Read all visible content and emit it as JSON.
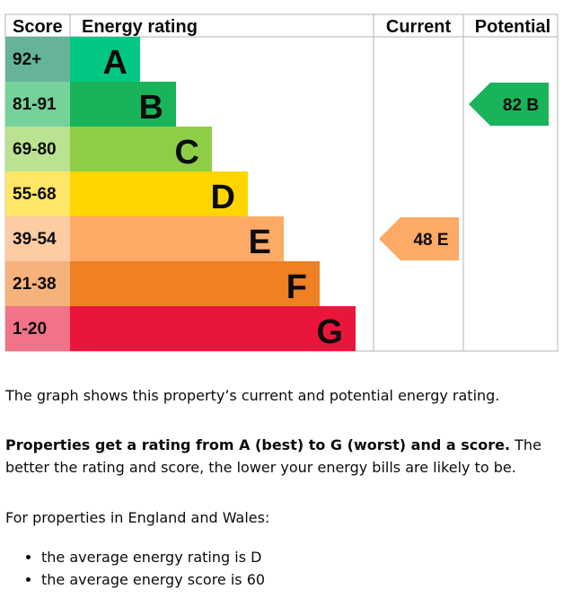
{
  "headers": {
    "score": "Score",
    "energy_rating": "Energy rating",
    "current": "Current",
    "potential": "Potential"
  },
  "chart_data": {
    "type": "bar",
    "bands": [
      {
        "score": "92+",
        "letter": "A",
        "color": "#008054",
        "score_bg": "#66b398",
        "bar": "#00c781"
      },
      {
        "score": "81-91",
        "letter": "B",
        "color": "#19b459",
        "score_bg": "#75d29b",
        "bar": "#19b459"
      },
      {
        "score": "69-80",
        "letter": "C",
        "color": "#8dce46",
        "score_bg": "#bbe290",
        "bar": "#8dce46"
      },
      {
        "score": "55-68",
        "letter": "D",
        "color": "#ffd500",
        "score_bg": "#ffe666",
        "bar": "#ffd500"
      },
      {
        "score": "39-54",
        "letter": "E",
        "color": "#fcaa65",
        "score_bg": "#fdcca3",
        "bar": "#fcaa65"
      },
      {
        "score": "21-38",
        "letter": "F",
        "color": "#ef8023",
        "score_bg": "#f5b37b",
        "bar": "#ef8023"
      },
      {
        "score": "1-20",
        "letter": "G",
        "color": "#e9153b",
        "score_bg": "#f27389",
        "bar": "#e9153b"
      }
    ],
    "current": {
      "score": 48,
      "band": "E",
      "label": "48  E",
      "color": "#fcaa65"
    },
    "potential": {
      "score": 82,
      "band": "B",
      "label": "82  B",
      "color": "#19b459"
    }
  },
  "text": {
    "summary": "The graph shows this property’s current and potential energy rating.",
    "bold_intro": "Properties get a rating from A (best) to G (worst) and a score.",
    "rest_intro": " The better the rating and score, the lower your energy bills are likely to be.",
    "region": "For properties in England and Wales:",
    "averages": [
      "the average energy rating is D",
      "the average energy score is 60"
    ]
  }
}
